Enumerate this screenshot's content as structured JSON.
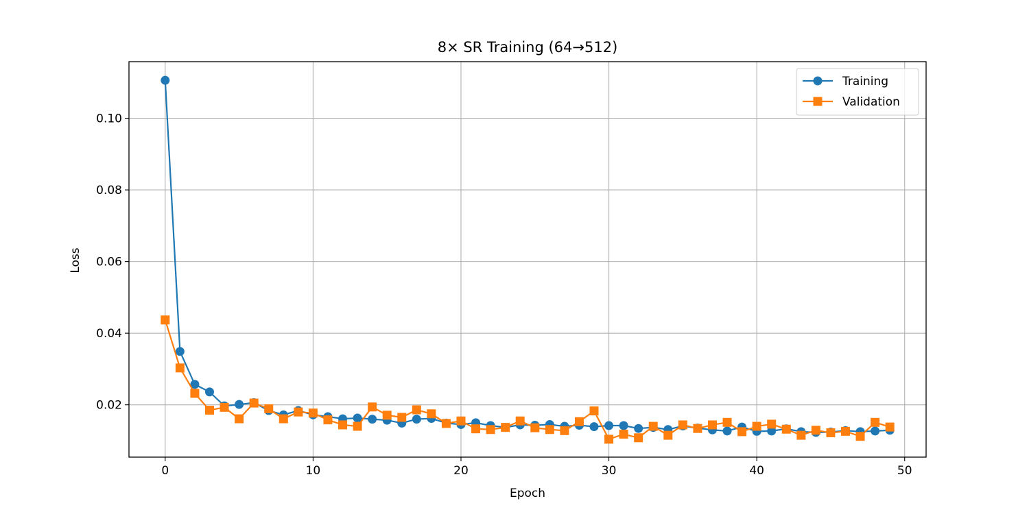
{
  "chart_data": {
    "type": "line",
    "title": "8× SR Training (64→512)",
    "xlabel": "Epoch",
    "ylabel": "Loss",
    "xlim": [
      -2.45,
      51.45
    ],
    "ylim": [
      0.0054,
      0.1158
    ],
    "xticks": [
      0,
      10,
      20,
      30,
      40,
      50
    ],
    "xtick_labels": [
      "0",
      "10",
      "20",
      "30",
      "40",
      "50"
    ],
    "yticks": [
      0.02,
      0.04,
      0.06,
      0.08,
      0.1
    ],
    "ytick_labels": [
      "0.02",
      "0.04",
      "0.06",
      "0.08",
      "0.10"
    ],
    "grid": true,
    "legend_position": "top-right",
    "x": [
      0,
      1,
      2,
      3,
      4,
      5,
      6,
      7,
      8,
      9,
      10,
      11,
      12,
      13,
      14,
      15,
      16,
      17,
      18,
      19,
      20,
      21,
      22,
      23,
      24,
      25,
      26,
      27,
      28,
      29,
      30,
      31,
      32,
      33,
      34,
      35,
      36,
      37,
      38,
      39,
      40,
      41,
      42,
      43,
      44,
      45,
      46,
      47,
      48,
      49
    ],
    "series": [
      {
        "name": "Training",
        "color": "#1f77b4",
        "marker": "circle",
        "values": [
          0.1106,
          0.0349,
          0.0257,
          0.0236,
          0.0197,
          0.0201,
          0.0206,
          0.0184,
          0.0172,
          0.0184,
          0.0172,
          0.0167,
          0.0161,
          0.0163,
          0.016,
          0.0157,
          0.0149,
          0.016,
          0.0162,
          0.0149,
          0.0145,
          0.015,
          0.0142,
          0.0137,
          0.0144,
          0.0143,
          0.0145,
          0.014,
          0.0143,
          0.0139,
          0.0142,
          0.0142,
          0.0134,
          0.0137,
          0.0131,
          0.0141,
          0.0135,
          0.013,
          0.0127,
          0.0138,
          0.0126,
          0.0127,
          0.0133,
          0.0125,
          0.0123,
          0.0124,
          0.0128,
          0.0125,
          0.0127,
          0.0129
        ]
      },
      {
        "name": "Validation",
        "color": "#ff7f0e",
        "marker": "square",
        "values": [
          0.0437,
          0.0303,
          0.0232,
          0.0185,
          0.0193,
          0.0161,
          0.0205,
          0.0189,
          0.0161,
          0.018,
          0.0177,
          0.0158,
          0.0144,
          0.014,
          0.0194,
          0.0171,
          0.0165,
          0.0186,
          0.0175,
          0.0148,
          0.0155,
          0.0133,
          0.0131,
          0.0137,
          0.0155,
          0.0136,
          0.0131,
          0.0128,
          0.0153,
          0.0183,
          0.0104,
          0.0118,
          0.0108,
          0.014,
          0.0115,
          0.0144,
          0.0134,
          0.0144,
          0.0151,
          0.0125,
          0.014,
          0.0146,
          0.0132,
          0.0115,
          0.0129,
          0.0122,
          0.0126,
          0.0112,
          0.0151,
          0.0138
        ]
      }
    ]
  }
}
